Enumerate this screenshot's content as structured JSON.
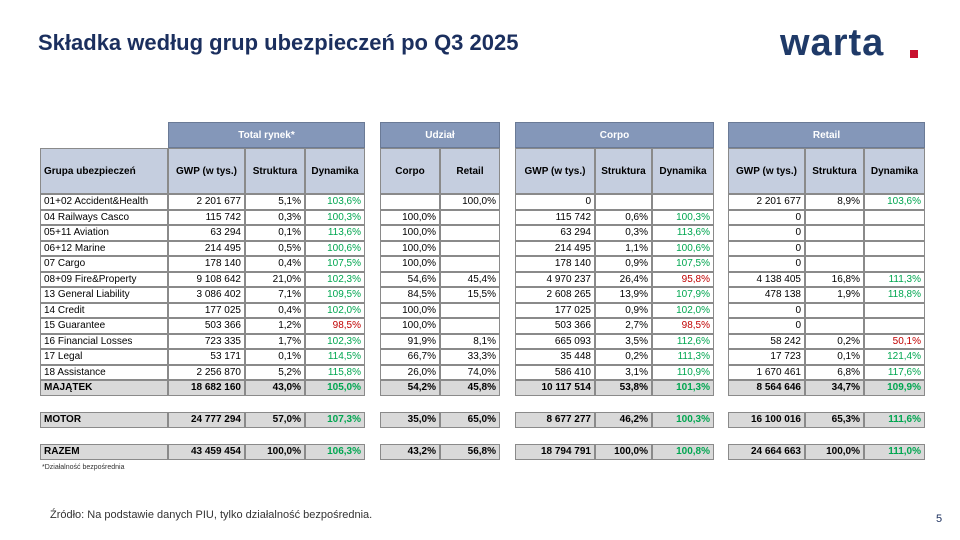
{
  "title": "Składka według grup ubezpieczeń po Q3 2025",
  "logo": "warta",
  "table": {
    "groups": [
      "Total rynek*",
      "Udział",
      "Corpo",
      "Retail"
    ],
    "columns": [
      "Grupa ubezpieczeń",
      "GWP (w tys.)",
      "Struktura",
      "Dynamika",
      "Corpo",
      "Retail",
      "GWP (w tys.)",
      "Struktura",
      "Dynamika",
      "GWP (w tys.)",
      "Struktura",
      "Dynamika"
    ],
    "rows": [
      [
        "01+02 Accident&Health",
        "2 201 677",
        "5,1%",
        "103,6%",
        null,
        "100,0%",
        "0",
        null,
        null,
        "2 201 677",
        "8,9%",
        "103,6%"
      ],
      [
        "04 Railways Casco",
        "115 742",
        "0,3%",
        "100,3%",
        "100,0%",
        null,
        "115 742",
        "0,6%",
        "100,3%",
        "0",
        null,
        null
      ],
      [
        "05+11 Aviation",
        "63 294",
        "0,1%",
        "113,6%",
        "100,0%",
        null,
        "63 294",
        "0,3%",
        "113,6%",
        "0",
        null,
        null
      ],
      [
        "06+12 Marine",
        "214 495",
        "0,5%",
        "100,6%",
        "100,0%",
        null,
        "214 495",
        "1,1%",
        "100,6%",
        "0",
        null,
        null
      ],
      [
        "07 Cargo",
        "178 140",
        "0,4%",
        "107,5%",
        "100,0%",
        null,
        "178 140",
        "0,9%",
        "107,5%",
        "0",
        null,
        null
      ],
      [
        "08+09 Fire&Property",
        "9 108 642",
        "21,0%",
        "102,3%",
        "54,6%",
        "45,4%",
        "4 970 237",
        "26,4%",
        "95,8%",
        "4 138 405",
        "16,8%",
        "111,3%"
      ],
      [
        "13 General Liability",
        "3 086 402",
        "7,1%",
        "109,5%",
        "84,5%",
        "15,5%",
        "2 608 265",
        "13,9%",
        "107,9%",
        "478 138",
        "1,9%",
        "118,8%"
      ],
      [
        "14 Credit",
        "177 025",
        "0,4%",
        "102,0%",
        "100,0%",
        null,
        "177 025",
        "0,9%",
        "102,0%",
        "0",
        null,
        null
      ],
      [
        "15 Guarantee",
        "503 366",
        "1,2%",
        "98,5%",
        "100,0%",
        null,
        "503 366",
        "2,7%",
        "98,5%",
        "0",
        null,
        null
      ],
      [
        "16 Financial Losses",
        "723 335",
        "1,7%",
        "102,3%",
        "91,9%",
        "8,1%",
        "665 093",
        "3,5%",
        "112,6%",
        "58 242",
        "0,2%",
        "50,1%"
      ],
      [
        "17 Legal",
        "53 171",
        "0,1%",
        "114,5%",
        "66,7%",
        "33,3%",
        "35 448",
        "0,2%",
        "111,3%",
        "17 723",
        "0,1%",
        "121,4%"
      ],
      [
        "18 Assistance",
        "2 256 870",
        "5,2%",
        "115,8%",
        "26,0%",
        "74,0%",
        "586 410",
        "3,1%",
        "110,9%",
        "1 670 461",
        "6,8%",
        "117,6%"
      ],
      [
        "MAJĄTEK",
        "18 682 160",
        "43,0%",
        "105,0%",
        "54,2%",
        "45,8%",
        "10 117 514",
        "53,8%",
        "101,3%",
        "8 564 646",
        "34,7%",
        "109,9%"
      ],
      [
        "MOTOR",
        "24 777 294",
        "57,0%",
        "107,3%",
        "35,0%",
        "65,0%",
        "8 677 277",
        "46,2%",
        "100,3%",
        "16 100 016",
        "65,3%",
        "111,6%"
      ],
      [
        "RAZEM",
        "43 459 454",
        "100,0%",
        "106,3%",
        "43,2%",
        "56,8%",
        "18 794 791",
        "100,0%",
        "100,8%",
        "24 664 663",
        "100,0%",
        "111,0%"
      ]
    ]
  },
  "footnote": "*Działalność bezpośrednia",
  "source": "Źródło: Na podstawie danych PIU, tylko działalność bezpośrednia.",
  "page_number": "5"
}
